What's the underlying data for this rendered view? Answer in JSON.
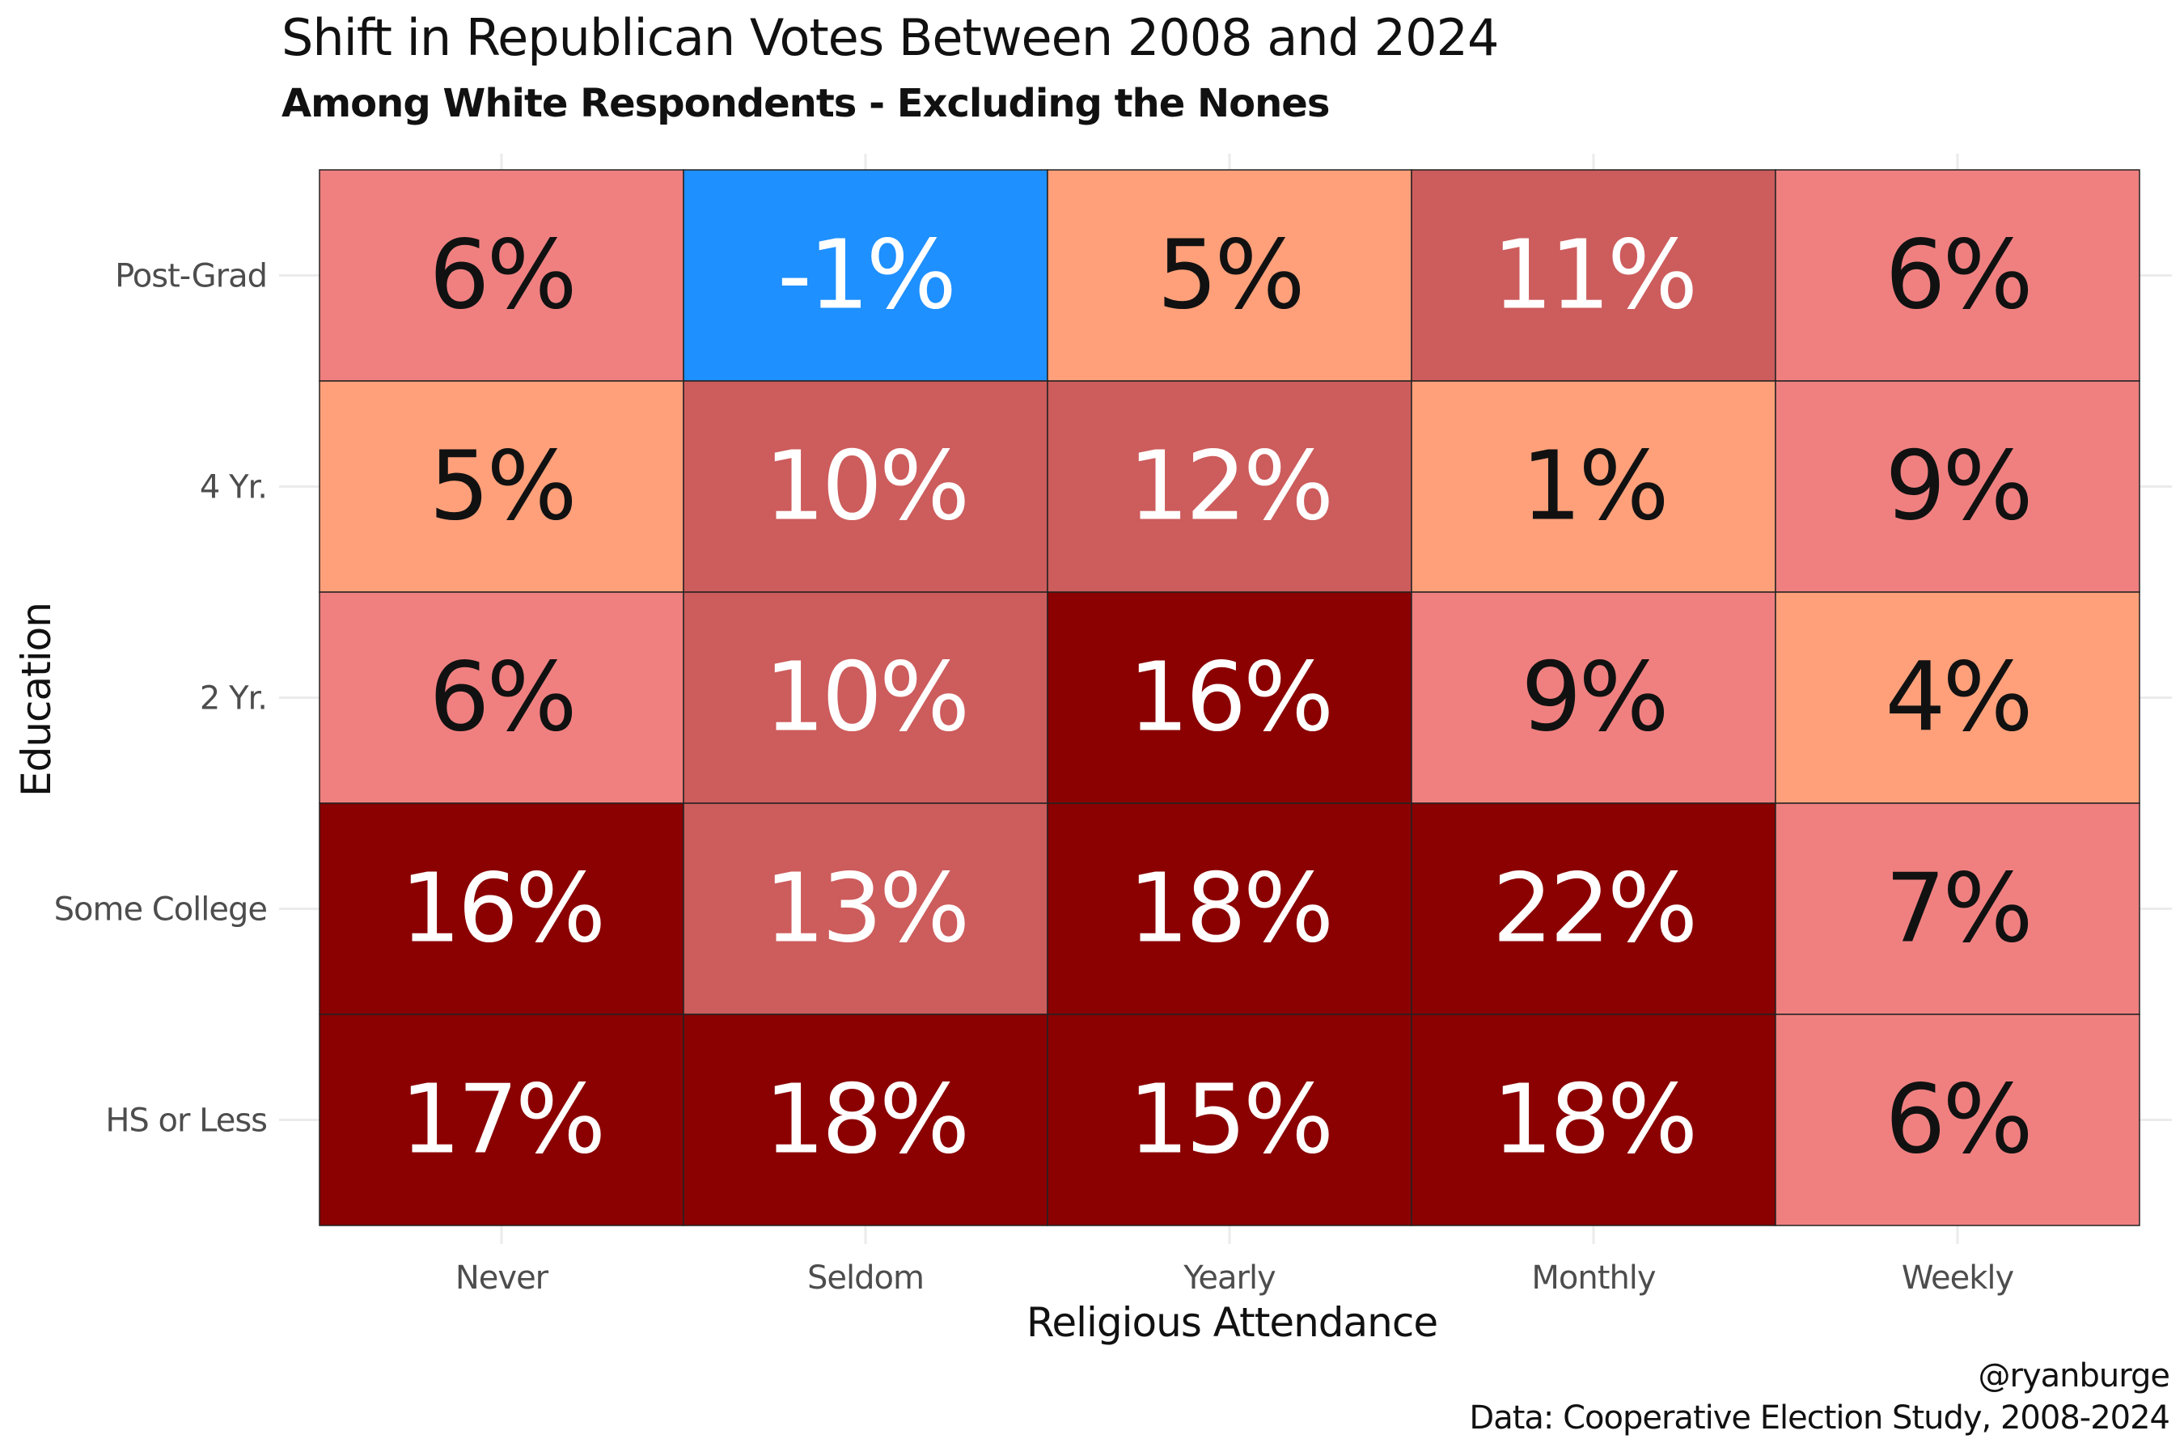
{
  "chart_data": {
    "type": "heatmap",
    "title": "Shift in Republican Votes Between 2008 and 2024",
    "subtitle": "Among White Respondents - Excluding the Nones",
    "xlabel": "Religious Attendance",
    "ylabel": "Education",
    "x_categories": [
      "Never",
      "Seldom",
      "Yearly",
      "Monthly",
      "Weekly"
    ],
    "y_categories": [
      "Post-Grad",
      "4 Yr.",
      "2 Yr.",
      "Some College",
      "HS or Less"
    ],
    "values": [
      [
        6,
        -1,
        5,
        11,
        6
      ],
      [
        5,
        10,
        12,
        1,
        9
      ],
      [
        6,
        10,
        16,
        9,
        4
      ],
      [
        16,
        13,
        18,
        22,
        7
      ],
      [
        17,
        18,
        15,
        18,
        6
      ]
    ],
    "value_suffix": "%",
    "grid": true,
    "colors": {
      "negative": "#1e90ff",
      "low": "#ffa07a",
      "mid": "#f08080",
      "high": "#cd5c5c",
      "very_high": "#8b0000",
      "grid": "#ebebeb",
      "cell_border": "#222222"
    }
  },
  "caption": {
    "author": "@ryanburge",
    "source": "Data: Cooperative Election Study, 2008-2024"
  }
}
